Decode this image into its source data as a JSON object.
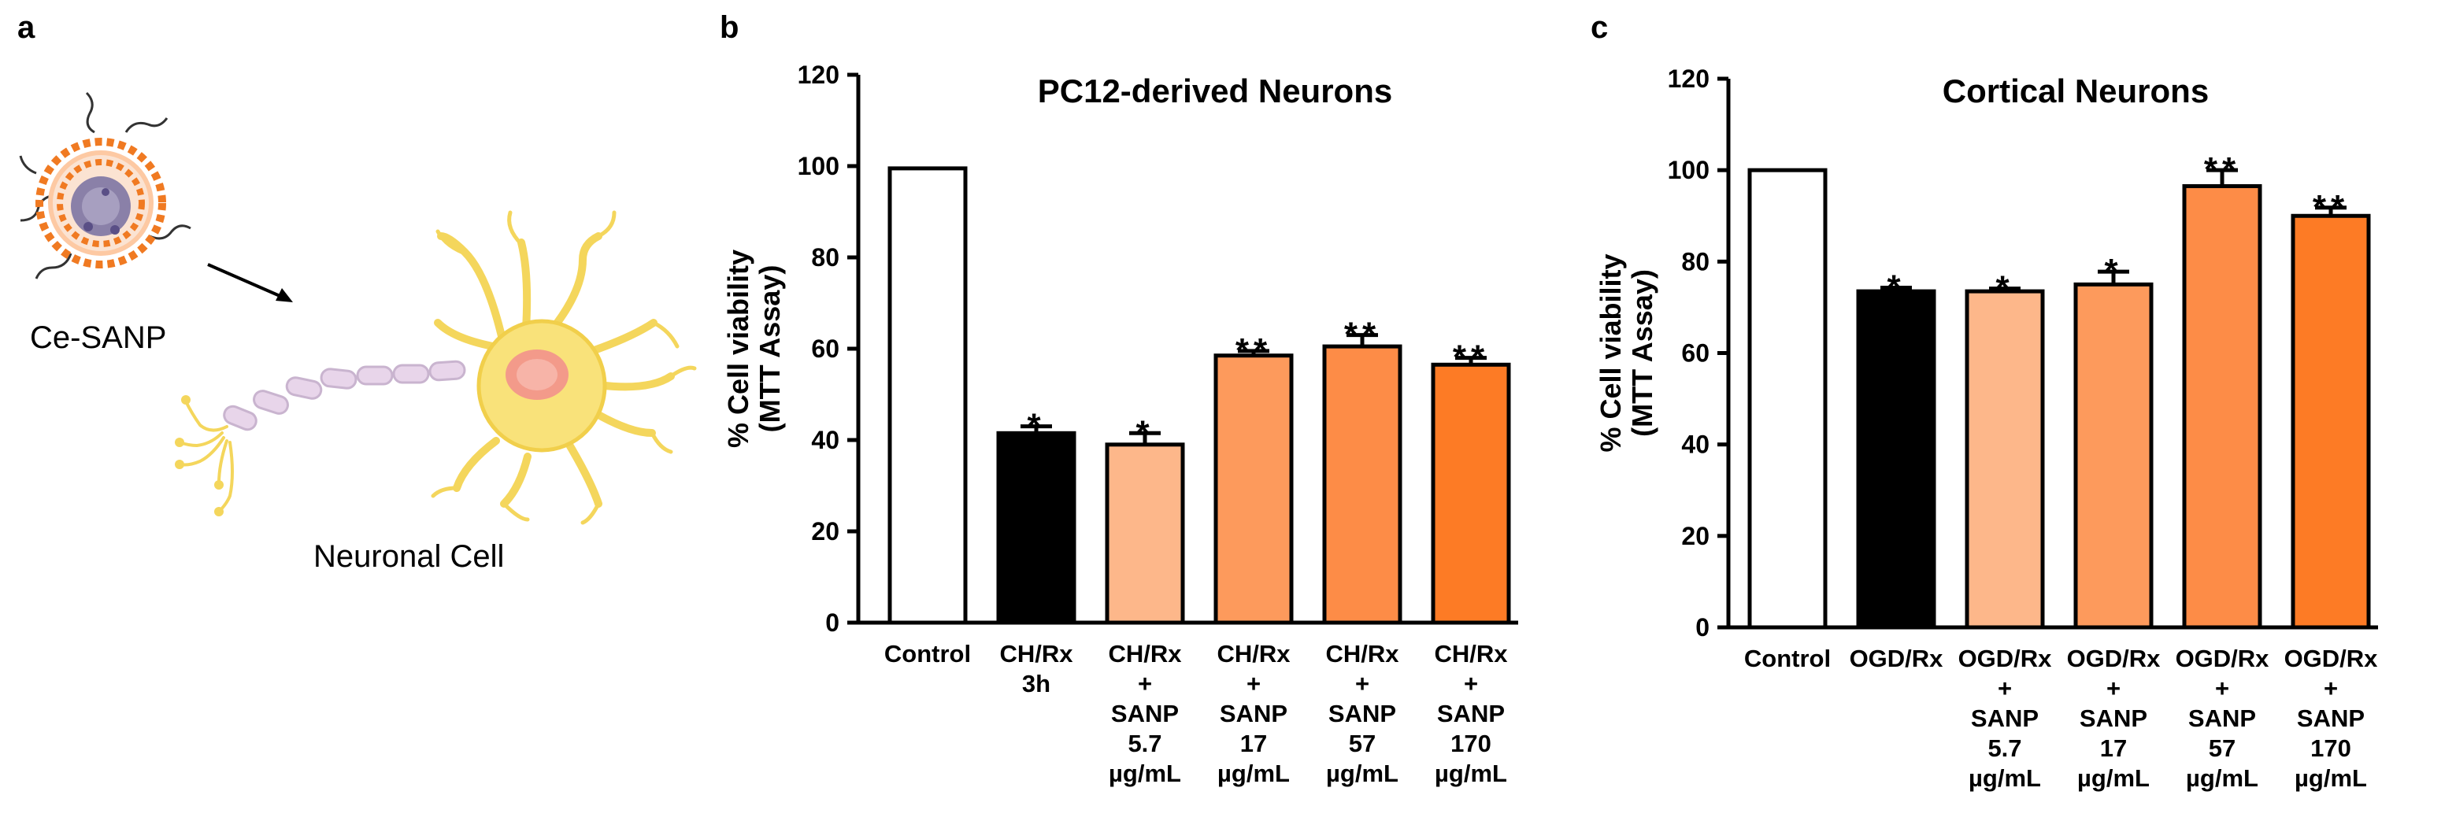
{
  "panels": {
    "a": "a",
    "b": "b",
    "c": "c"
  },
  "illustration": {
    "nanoparticle_label": "Ce-SANP",
    "cell_label": "Neuronal Cell"
  },
  "chart_data": [
    {
      "id": "b",
      "type": "bar",
      "title": "PC12-derived Neurons",
      "ylabel": [
        "% Cell viability",
        "(MTT Assay)"
      ],
      "xlabel": "",
      "ylim": [
        0,
        120
      ],
      "yticks": [
        0,
        20,
        40,
        60,
        80,
        100,
        120
      ],
      "categories": [
        [
          "Control"
        ],
        [
          "CH/Rx",
          "3h"
        ],
        [
          "CH/Rx",
          "+",
          "SANP",
          "5.7",
          "µg/mL"
        ],
        [
          "CH/Rx",
          "+",
          "SANP",
          "17",
          "µg/mL"
        ],
        [
          "CH/Rx",
          "+",
          "SANP",
          "57",
          "µg/mL"
        ],
        [
          "CH/Rx",
          "+",
          "SANP",
          "170",
          "µg/mL"
        ]
      ],
      "values": [
        99.5,
        41.5,
        39,
        58.5,
        60.5,
        56.5
      ],
      "errors": [
        0,
        1.5,
        2.5,
        1.0,
        2.5,
        1.5
      ],
      "significance": [
        "",
        "*",
        "*",
        "**",
        "**",
        "**"
      ],
      "colors": [
        "#ffffff",
        "#000000",
        "#fdb78a",
        "#fd9a5c",
        "#fd8c47",
        "#fd7b25"
      ]
    },
    {
      "id": "c",
      "type": "bar",
      "title": "Cortical Neurons",
      "ylabel": [
        "% Cell viability",
        "(MTT Assay)"
      ],
      "xlabel": "",
      "ylim": [
        0,
        120
      ],
      "yticks": [
        0,
        20,
        40,
        60,
        80,
        100,
        120
      ],
      "categories": [
        [
          "Control"
        ],
        [
          "OGD/Rx"
        ],
        [
          "OGD/Rx",
          "+",
          "SANP",
          "5.7",
          "µg/mL"
        ],
        [
          "OGD/Rx",
          "+",
          "SANP",
          "17",
          "µg/mL"
        ],
        [
          "OGD/Rx",
          "+",
          "SANP",
          "57",
          "µg/mL"
        ],
        [
          "OGD/Rx",
          "+",
          "SANP",
          "170",
          "µg/mL"
        ]
      ],
      "values": [
        100,
        73.5,
        73.5,
        75,
        96.5,
        90
      ],
      "errors": [
        0,
        0.8,
        0.6,
        2.8,
        3.5,
        1.8
      ],
      "significance": [
        "",
        "*",
        "*",
        "*",
        "**",
        "**"
      ],
      "colors": [
        "#ffffff",
        "#000000",
        "#fdb78a",
        "#fd9a5c",
        "#fd8c47",
        "#fd7b25"
      ]
    }
  ]
}
